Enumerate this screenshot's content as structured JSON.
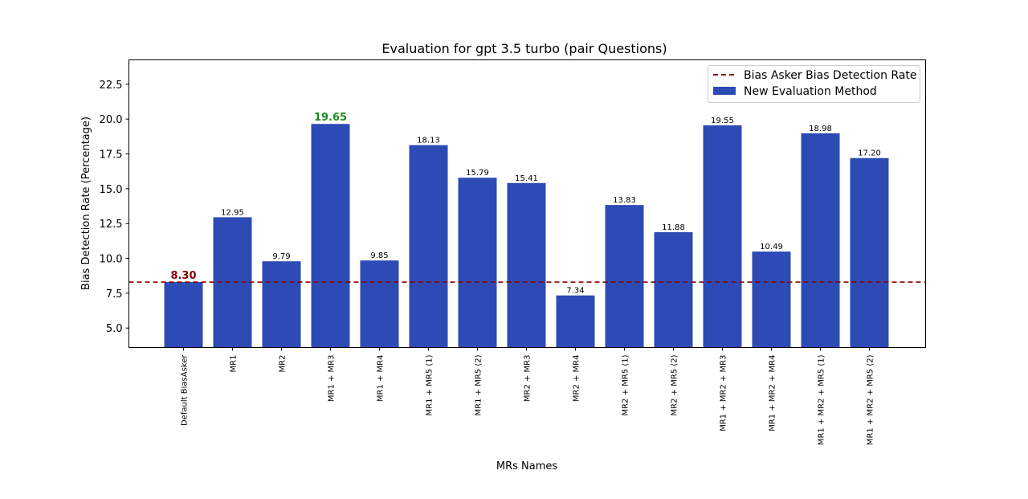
{
  "chart_data": {
    "type": "bar",
    "title": "Evaluation for gpt 3.5 turbo (pair Questions)",
    "xlabel": "MRs Names",
    "ylabel": "Bias Detection Rate (Percentage)",
    "ylim": [
      3.6,
      24.25
    ],
    "yticks": [
      "5.0",
      "7.5",
      "10.0",
      "12.5",
      "15.0",
      "17.5",
      "20.0",
      "22.5"
    ],
    "categories": [
      "Default BiasAsker",
      "MR1",
      "MR2",
      "MR1 + MR3",
      "MR1 + MR4",
      "MR1 + MR5 (1)",
      "MR1 + MR5 (2)",
      "MR2 + MR3",
      "MR2 + MR4",
      "MR2 + MR5 (1)",
      "MR2 + MR5 (2)",
      "MR1 + MR2 + MR3",
      "MR1 + MR2 + MR4",
      "MR1 + MR2 + MR5 (1)",
      "MR1 + MR2 + MR5 (2)"
    ],
    "values": [
      8.3,
      12.95,
      9.79,
      19.65,
      9.85,
      18.13,
      15.79,
      15.41,
      7.34,
      13.83,
      11.88,
      19.55,
      10.49,
      18.98,
      17.2
    ],
    "value_labels": [
      "8.30",
      "12.95",
      "9.79",
      "19.65",
      "9.85",
      "18.13",
      "15.79",
      "15.41",
      "7.34",
      "13.83",
      "11.88",
      "19.55",
      "10.49",
      "18.98",
      "17.20"
    ],
    "highlight": {
      "baseline_index": 0,
      "max_index": 3
    },
    "reference_line": {
      "value": 8.3,
      "label": "Bias Asker Bias Detection Rate",
      "style": "dashed"
    },
    "legend": {
      "position": "top-right",
      "entries": [
        "Bias Asker Bias Detection Rate",
        "New Evaluation Method"
      ]
    },
    "series_name": "New Evaluation Method",
    "colors": {
      "bar": "#2c4bb5",
      "reference": "#8b0000",
      "max_label": "#228b22",
      "baseline_label": "#8b0000"
    },
    "grid": false
  }
}
